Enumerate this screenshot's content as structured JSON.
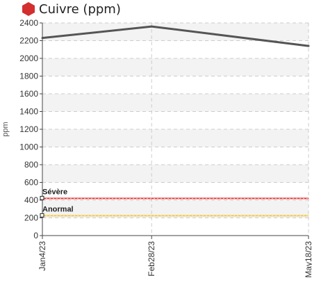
{
  "header": {
    "title": "Cuivre (ppm)",
    "icon": "red-hexagon-icon",
    "icon_color": "#d32f2f"
  },
  "chart_data": {
    "type": "line",
    "title": "Cuivre (ppm)",
    "xlabel": "",
    "ylabel": "ppm",
    "x": [
      "Jan4/23",
      "Feb28/23",
      "May18/23"
    ],
    "x_days": [
      0,
      55,
      134
    ],
    "ylim": [
      0,
      2400
    ],
    "yticks": [
      0,
      200,
      400,
      600,
      800,
      1000,
      1200,
      1400,
      1600,
      1800,
      2000,
      2200,
      2400
    ],
    "grid": true,
    "series": [
      {
        "name": "",
        "values": [
          2230,
          2360,
          2140
        ],
        "color": "#555555"
      }
    ],
    "thresholds": [
      {
        "label": "Sévère",
        "value": 420,
        "color": "#e53935"
      },
      {
        "label": "Anormal",
        "value": 225,
        "color": "#f2c744"
      }
    ]
  }
}
